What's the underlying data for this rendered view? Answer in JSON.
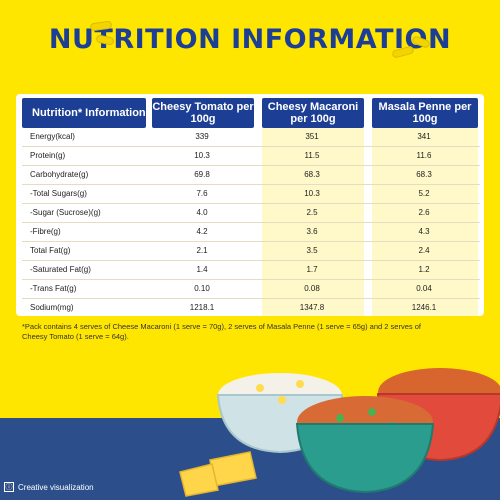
{
  "title": "NUTRITION INFORMATION",
  "table": {
    "headers": {
      "label": "Nutrition* Information",
      "col1": "Cheesy Tomato per 100g",
      "col2": "Cheesy Macaroni per 100g",
      "col3": "Masala Penne per 100g"
    },
    "rows": [
      {
        "label": "Energy(kcal)",
        "v1": "339",
        "v2": "351",
        "v3": "341"
      },
      {
        "label": "Protein(g)",
        "v1": "10.3",
        "v2": "11.5",
        "v3": "11.6"
      },
      {
        "label": "Carbohydrate(g)",
        "v1": "69.8",
        "v2": "68.3",
        "v3": "68.3"
      },
      {
        "label": "-Total Sugars(g)",
        "v1": "7.6",
        "v2": "10.3",
        "v3": "5.2"
      },
      {
        "label": "-Sugar (Sucrose)(g)",
        "v1": "4.0",
        "v2": "2.5",
        "v3": "2.6"
      },
      {
        "label": "-Fibre(g)",
        "v1": "4.2",
        "v2": "3.6",
        "v3": "4.3"
      },
      {
        "label": "Total Fat(g)",
        "v1": "2.1",
        "v2": "3.5",
        "v3": "2.4"
      },
      {
        "label": "-Saturated Fat(g)",
        "v1": "1.4",
        "v2": "1.7",
        "v3": "1.2"
      },
      {
        "label": "-Trans Fat(g)",
        "v1": "0.10",
        "v2": "0.08",
        "v3": "0.04"
      },
      {
        "label": "Sodium(mg)",
        "v1": "1218.1",
        "v2": "1347.8",
        "v3": "1246.1"
      }
    ]
  },
  "footnote": "*Pack contains 4 serves of Cheese Macaroni (1 serve = 70g), 2 serves of Masala Penne (1 serve = 65g) and 2 serves of Cheesy Tomato (1 serve = 64g).",
  "creative_label": "Creative visualization",
  "colors": {
    "background": "#ffe600",
    "heading_blue": "#1c3f95",
    "cloth": "#2c4f8c"
  }
}
